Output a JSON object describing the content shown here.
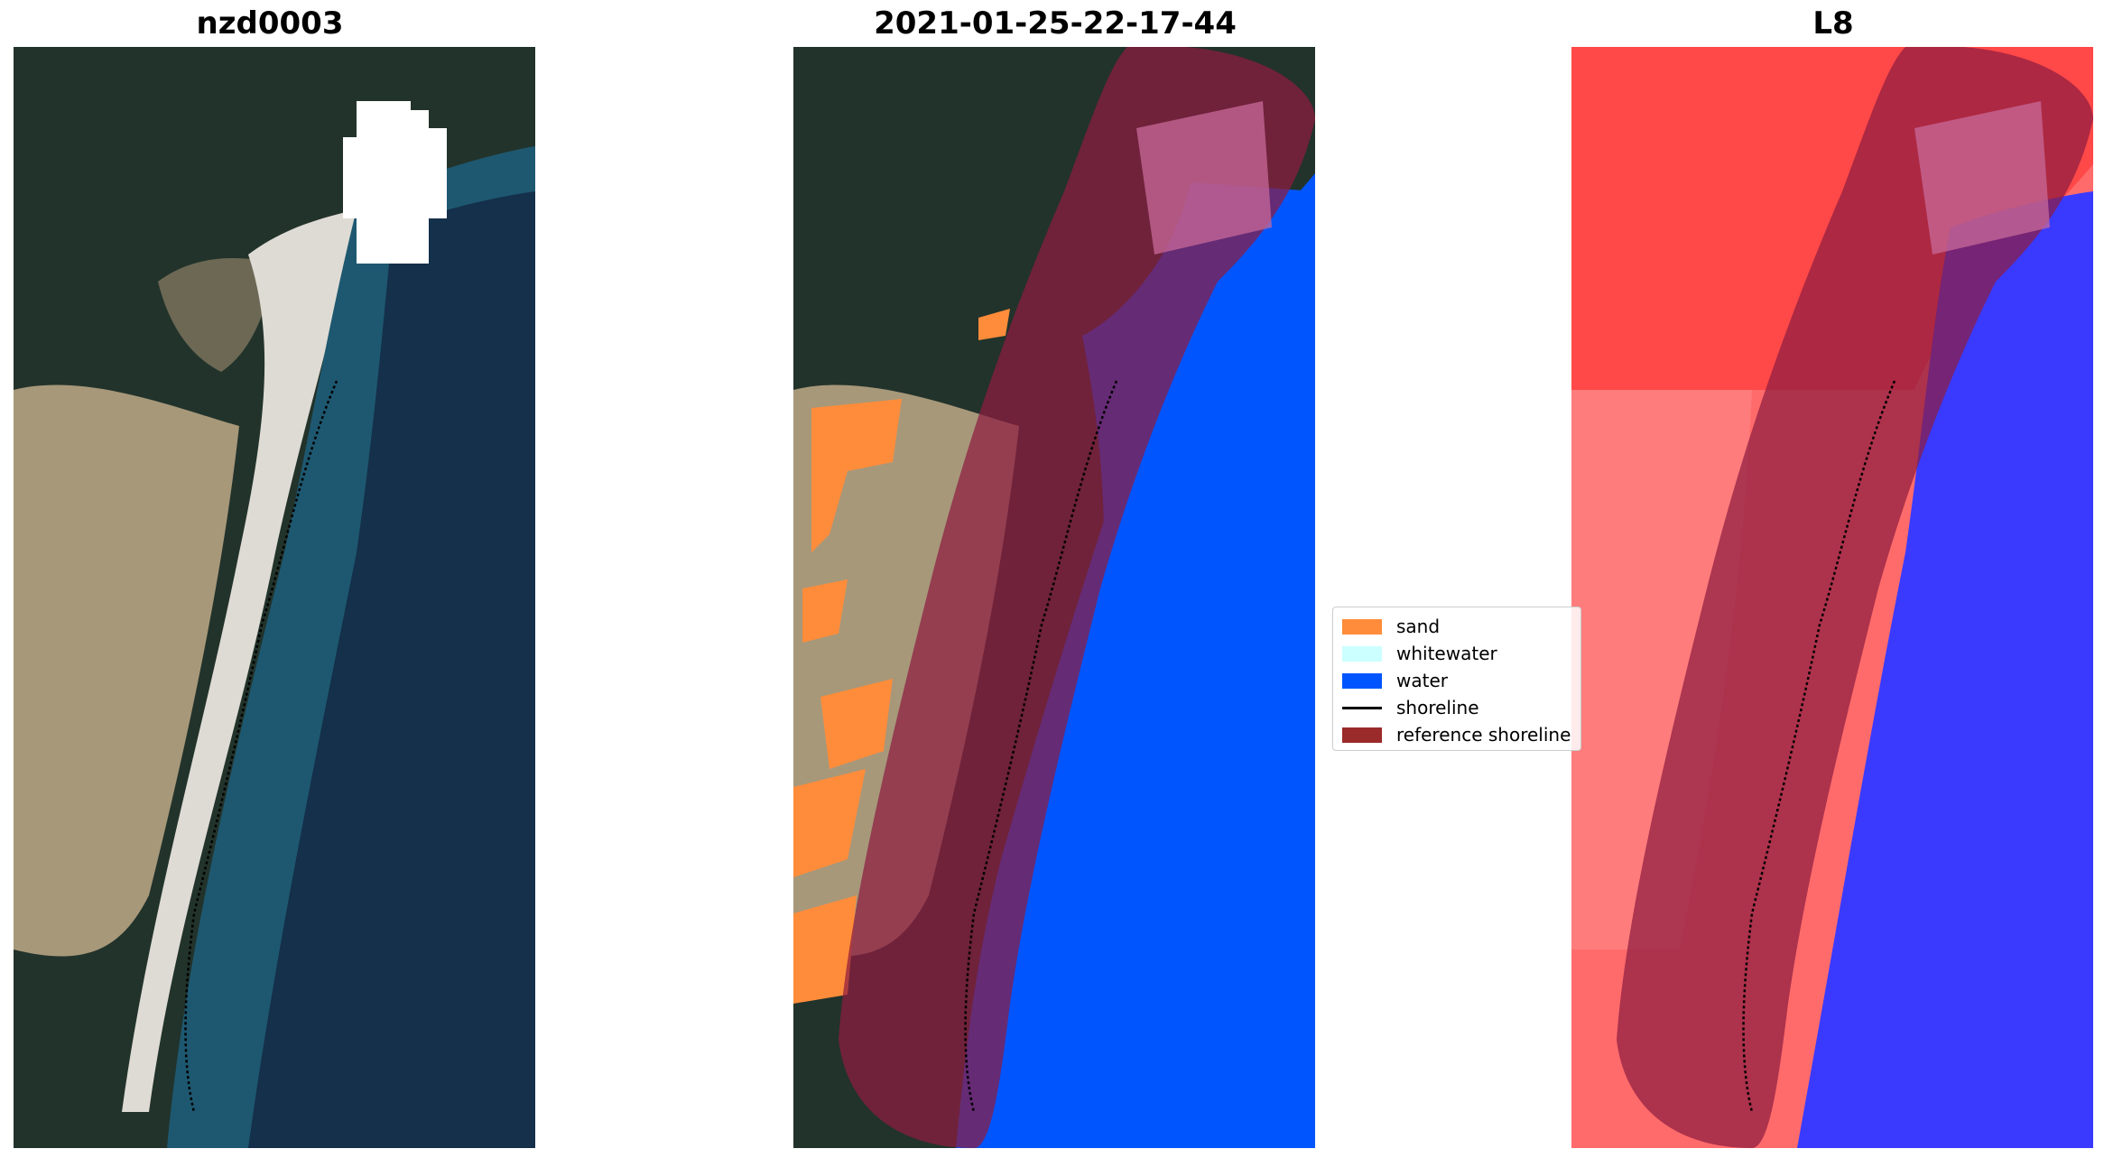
{
  "panels": [
    {
      "title": "nzd0003",
      "kind": "rgb"
    },
    {
      "title": "2021-01-25-22-17-44",
      "kind": "classified"
    },
    {
      "title": "L8",
      "kind": "index"
    }
  ],
  "legend": {
    "items": [
      {
        "label": "sand",
        "color": "#ff8c3a",
        "type": "patch"
      },
      {
        "label": "whitewater",
        "color": "#ccffff",
        "type": "patch"
      },
      {
        "label": "water",
        "color": "#0055ff",
        "type": "patch"
      },
      {
        "label": "shoreline",
        "color": "#000000",
        "type": "line"
      },
      {
        "label": "reference shoreline",
        "color": "#9b2a2a",
        "type": "patch"
      }
    ]
  },
  "colors": {
    "forest": "#1f2f26",
    "dune": "#a89a78",
    "beach": "#dcdcd6",
    "ocean": "#123a52",
    "cloud": "#ffffff",
    "water_class": "#0055ff",
    "reference_band": "#8e1c40",
    "index_red": "#ff5c5c",
    "index_blue": "#3030ff"
  }
}
